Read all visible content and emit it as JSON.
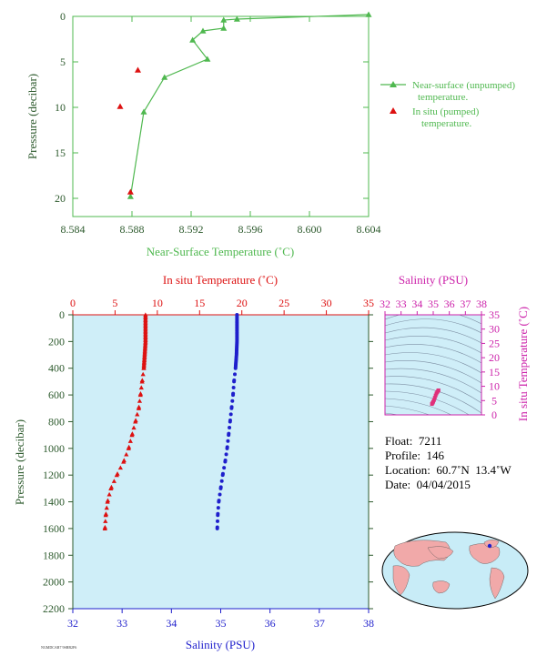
{
  "colors": {
    "green": "#4fb84f",
    "axis_green": "#2d5a2d",
    "red": "#dd1111",
    "blue": "#1f1fcc",
    "magenta": "#cc22aa",
    "panel_bg": "#cfeef8",
    "pink": "#e0307a"
  },
  "top_chart": {
    "xlabel": "Near-Surface Temperature (˚C)",
    "ylabel": "Pressure (decibar)",
    "legend": {
      "series1_line1": "Near-surface (unpumped)",
      "series1_line2": "temperature.",
      "series2_line1": "In situ (pumped)",
      "series2_line2": "temperature."
    }
  },
  "main_chart": {
    "top_axis_label": "In situ Temperature (˚C)",
    "bottom_axis_label": "Salinity (PSU)",
    "ylabel": "Pressure (decibar)"
  },
  "ts_chart": {
    "top_label": "Salinity (PSU)",
    "right_label": "In situ Temperature (˚C)"
  },
  "float_info": {
    "float": "Float:  7211",
    "profile": "Profile:  146",
    "location": "Location:  60.7˚N  13.4˚W",
    "date": "Date:  04/04/2015"
  },
  "footer_tag": "NGMDCAR7 9SBB2F6",
  "chart_data": [
    {
      "type": "line",
      "xlabel": "Near-Surface Temperature (˚C)",
      "ylabel": "Pressure (decibar)",
      "xlim": [
        8.584,
        8.604
      ],
      "ylim": [
        22,
        0
      ],
      "x_ticks": [
        "8.584",
        "8.588",
        "8.592",
        "8.596",
        "8.600",
        "8.604"
      ],
      "y_ticks": [
        "0",
        "5",
        "10",
        "15",
        "20"
      ],
      "legend_position": "right",
      "series": [
        {
          "name": "Near-surface (unpumped) temperature.",
          "style": "line+triangle",
          "points": [
            [
              8.604,
              -0.2
            ],
            [
              8.5951,
              0.3
            ],
            [
              8.5942,
              0.4
            ],
            [
              8.5942,
              1.3
            ],
            [
              8.5928,
              1.6
            ],
            [
              8.5921,
              2.6
            ],
            [
              8.5931,
              4.7
            ],
            [
              8.5902,
              6.7
            ],
            [
              8.5888,
              10.5
            ],
            [
              8.5879,
              19.8
            ]
          ]
        },
        {
          "name": "In situ (pumped) temperature.",
          "style": "triangle",
          "points": [
            [
              8.5884,
              5.9
            ],
            [
              8.5872,
              9.9
            ],
            [
              8.5879,
              19.3
            ]
          ]
        }
      ]
    },
    {
      "type": "scatter",
      "ylabel": "Pressure (decibar)",
      "ylim": [
        2200,
        0
      ],
      "y_ticks": [
        "0",
        "200",
        "400",
        "600",
        "800",
        "1000",
        "1200",
        "1400",
        "1600",
        "1800",
        "2000",
        "2200"
      ],
      "top_axis": {
        "label": "In situ Temperature (˚C)",
        "range": [
          0,
          35
        ],
        "ticks": [
          "0",
          "5",
          "10",
          "15",
          "20",
          "25",
          "30",
          "35"
        ]
      },
      "bottom_axis": {
        "label": "Salinity (PSU)",
        "range": [
          32,
          38
        ],
        "ticks": [
          "32",
          "33",
          "34",
          "35",
          "36",
          "37",
          "38"
        ]
      },
      "series": [
        {
          "name": "In situ Temperature (˚C)",
          "marker": "triangle",
          "points": [
            [
              8.6,
              0
            ],
            [
              8.6,
              100
            ],
            [
              8.6,
              200
            ],
            [
              8.5,
              300
            ],
            [
              8.4,
              400
            ],
            [
              8.2,
              500
            ],
            [
              8.0,
              600
            ],
            [
              7.8,
              700
            ],
            [
              7.4,
              800
            ],
            [
              7.0,
              900
            ],
            [
              6.6,
              1000
            ],
            [
              6.0,
              1100
            ],
            [
              5.2,
              1200
            ],
            [
              4.5,
              1300
            ],
            [
              4.1,
              1400
            ],
            [
              3.9,
              1500
            ],
            [
              3.8,
              1600
            ]
          ]
        },
        {
          "name": "Salinity (PSU)",
          "marker": "circle",
          "points": [
            [
              35.33,
              0
            ],
            [
              35.33,
              100
            ],
            [
              35.33,
              200
            ],
            [
              35.32,
              300
            ],
            [
              35.3,
              400
            ],
            [
              35.27,
              500
            ],
            [
              35.25,
              600
            ],
            [
              35.22,
              700
            ],
            [
              35.19,
              800
            ],
            [
              35.16,
              900
            ],
            [
              35.13,
              1000
            ],
            [
              35.09,
              1100
            ],
            [
              35.04,
              1200
            ],
            [
              35.0,
              1300
            ],
            [
              34.96,
              1400
            ],
            [
              34.94,
              1500
            ],
            [
              34.93,
              1600
            ]
          ]
        }
      ]
    },
    {
      "type": "scatter",
      "xlabel": "Salinity (PSU)",
      "ylabel": "In situ Temperature (˚C)",
      "xlim": [
        32,
        38
      ],
      "ylim": [
        0,
        35
      ],
      "x_ticks": [
        "32",
        "33",
        "34",
        "35",
        "36",
        "37",
        "38"
      ],
      "y_ticks": [
        "0",
        "5",
        "10",
        "15",
        "20",
        "25",
        "30",
        "35"
      ],
      "series": [
        {
          "marker": "square",
          "points": [
            [
              34.92,
              3.8
            ],
            [
              34.96,
              4.2
            ],
            [
              35.0,
              4.6
            ],
            [
              35.05,
              5.2
            ],
            [
              35.1,
              6.0
            ],
            [
              35.15,
              6.8
            ],
            [
              35.2,
              7.5
            ],
            [
              35.25,
              8.0
            ],
            [
              35.3,
              8.4
            ],
            [
              35.33,
              8.6
            ]
          ]
        }
      ]
    }
  ]
}
